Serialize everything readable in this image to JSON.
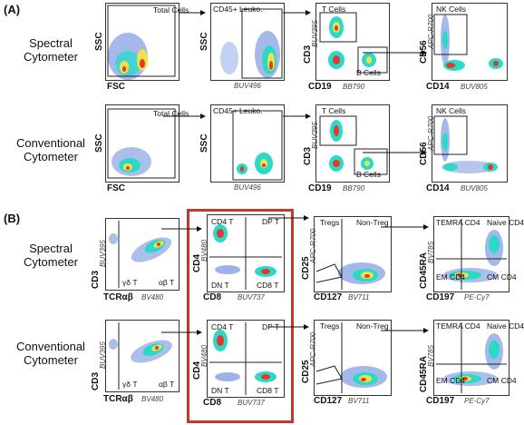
{
  "panels": {
    "A": {
      "label": "(A)",
      "rows": [
        {
          "name": "Spectral Cytometer",
          "plots": [
            {
              "gate_labels": [
                "Total Cells"
              ],
              "x_labels": [
                "FSC"
              ],
              "y_labels": [
                "SSC"
              ]
            },
            {
              "gate_labels": [
                "CD45+ Leuko."
              ],
              "x_labels": [
                "BUV496"
              ],
              "y_labels": [
                "SSC"
              ]
            },
            {
              "gate_labels": [
                "T Cells",
                "B Cells"
              ],
              "x_labels": [
                "CD19",
                "BB790"
              ],
              "y_labels": [
                "CD3",
                "BUV395"
              ]
            },
            {
              "gate_labels": [
                "NK Cells"
              ],
              "x_labels": [
                "CD14",
                "BUV805"
              ],
              "y_labels": [
                "CD56",
                "APC-R700"
              ]
            }
          ]
        },
        {
          "name": "Conventional Cytometer",
          "plots": [
            {
              "gate_labels": [
                "Total Cells"
              ],
              "x_labels": [
                "FSC"
              ],
              "y_labels": [
                "SSC"
              ]
            },
            {
              "gate_labels": [
                "CD45+ Leuko."
              ],
              "x_labels": [
                "BUV496"
              ],
              "y_labels": [
                "SSC"
              ]
            },
            {
              "gate_labels": [
                "T Cells",
                "B Cells"
              ],
              "x_labels": [
                "CD19",
                "BB790"
              ],
              "y_labels": [
                "CD3",
                "BUV395"
              ]
            },
            {
              "gate_labels": [
                "NK Cells"
              ],
              "x_labels": [
                "CD14",
                "BUV805"
              ],
              "y_labels": [
                "CD56",
                "APC-R700"
              ]
            }
          ]
        }
      ]
    },
    "B": {
      "label": "(B)",
      "rows": [
        {
          "name": "Spectral Cytometer",
          "plots": [
            {
              "gate_labels": [
                "γδ T",
                "αβ T"
              ],
              "x_labels": [
                "TCRαβ",
                "BV480"
              ],
              "y_labels": [
                "CD3",
                "BUV395"
              ]
            },
            {
              "gate_labels": [
                "CD4 T",
                "DP T",
                "DN T",
                "CD8 T"
              ],
              "x_labels": [
                "CD8",
                "BUV737"
              ],
              "y_labels": [
                "CD4",
                "BV480"
              ]
            },
            {
              "gate_labels": [
                "Tregs",
                "Non-Treg"
              ],
              "x_labels": [
                "CD127",
                "BV711"
              ],
              "y_labels": [
                "CD25",
                "APC-R700"
              ]
            },
            {
              "gate_labels": [
                "TEMRA CD4",
                "Naive CD4",
                "EM CD4",
                "CM CD4"
              ],
              "x_labels": [
                "CD197",
                "PE-Cy7"
              ],
              "y_labels": [
                "CD45RA",
                "BV785"
              ]
            }
          ]
        },
        {
          "name": "Conventional Cytometer",
          "plots": [
            {
              "gate_labels": [
                "γδ T",
                "αβ T"
              ],
              "x_labels": [
                "TCRαβ",
                "BV480"
              ],
              "y_labels": [
                "CD3",
                "BUV395"
              ]
            },
            {
              "gate_labels": [
                "CD4 T",
                "DP T",
                "DN T",
                "CD8 T"
              ],
              "x_labels": [
                "CD8",
                "BUV737"
              ],
              "y_labels": [
                "CD4",
                "BV480"
              ]
            },
            {
              "gate_labels": [
                "Tregs",
                "Non-Treg"
              ],
              "x_labels": [
                "CD127",
                "BV711"
              ],
              "y_labels": [
                "CD25",
                "APC-R700"
              ]
            },
            {
              "gate_labels": [
                "TEMRA CD4",
                "Naive CD4",
                "EM CD4",
                "CM CD4"
              ],
              "x_labels": [
                "CD197",
                "PE-Cy7"
              ],
              "y_labels": [
                "CD45RA",
                "BV785"
              ]
            }
          ]
        }
      ]
    }
  },
  "colors": {
    "highlight_box": "#c0392b"
  }
}
